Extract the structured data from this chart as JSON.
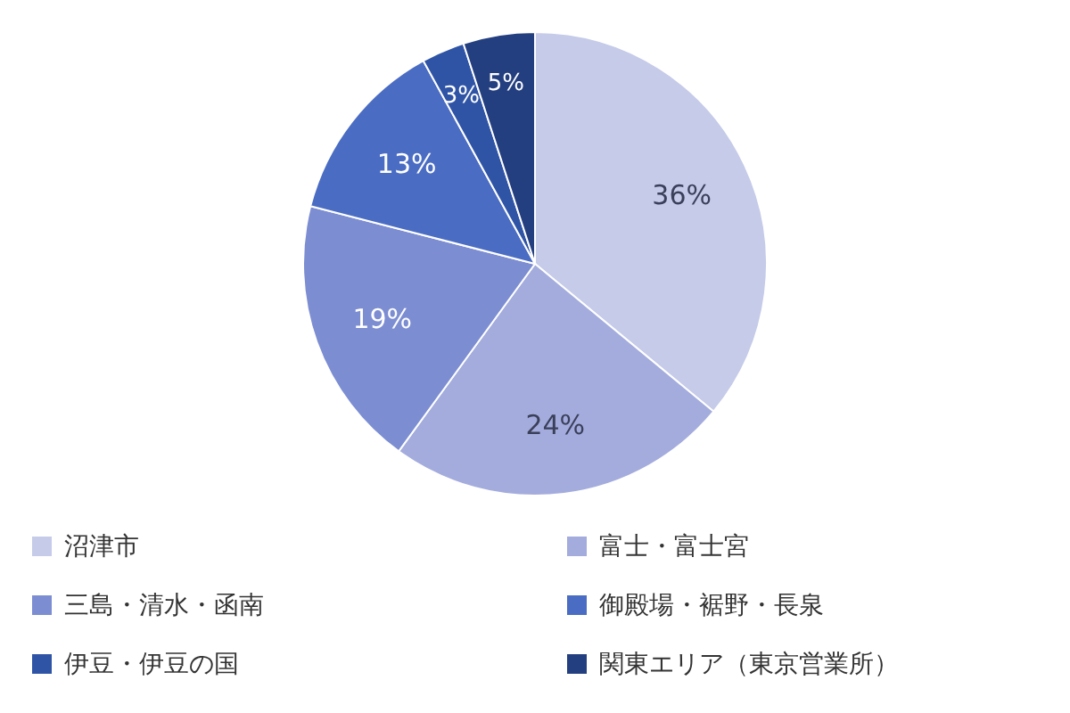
{
  "chart_data": {
    "type": "pie",
    "categories": [
      "沼津市",
      "富士・富士宮",
      "三島・清水・函南",
      "御殿場・裾野・長泉",
      "伊豆・伊豆の国",
      "関東エリア（東京営業所）"
    ],
    "values": [
      36,
      24,
      19,
      13,
      3,
      5
    ],
    "colors": [
      "#c5cbe8",
      "#a3acdc",
      "#7c8dd2",
      "#4a6cc2",
      "#2f54a6",
      "#243f80"
    ],
    "value_labels": [
      "36%",
      "24%",
      "19%",
      "13%",
      "3%",
      "5%"
    ],
    "legend": "bottom"
  }
}
